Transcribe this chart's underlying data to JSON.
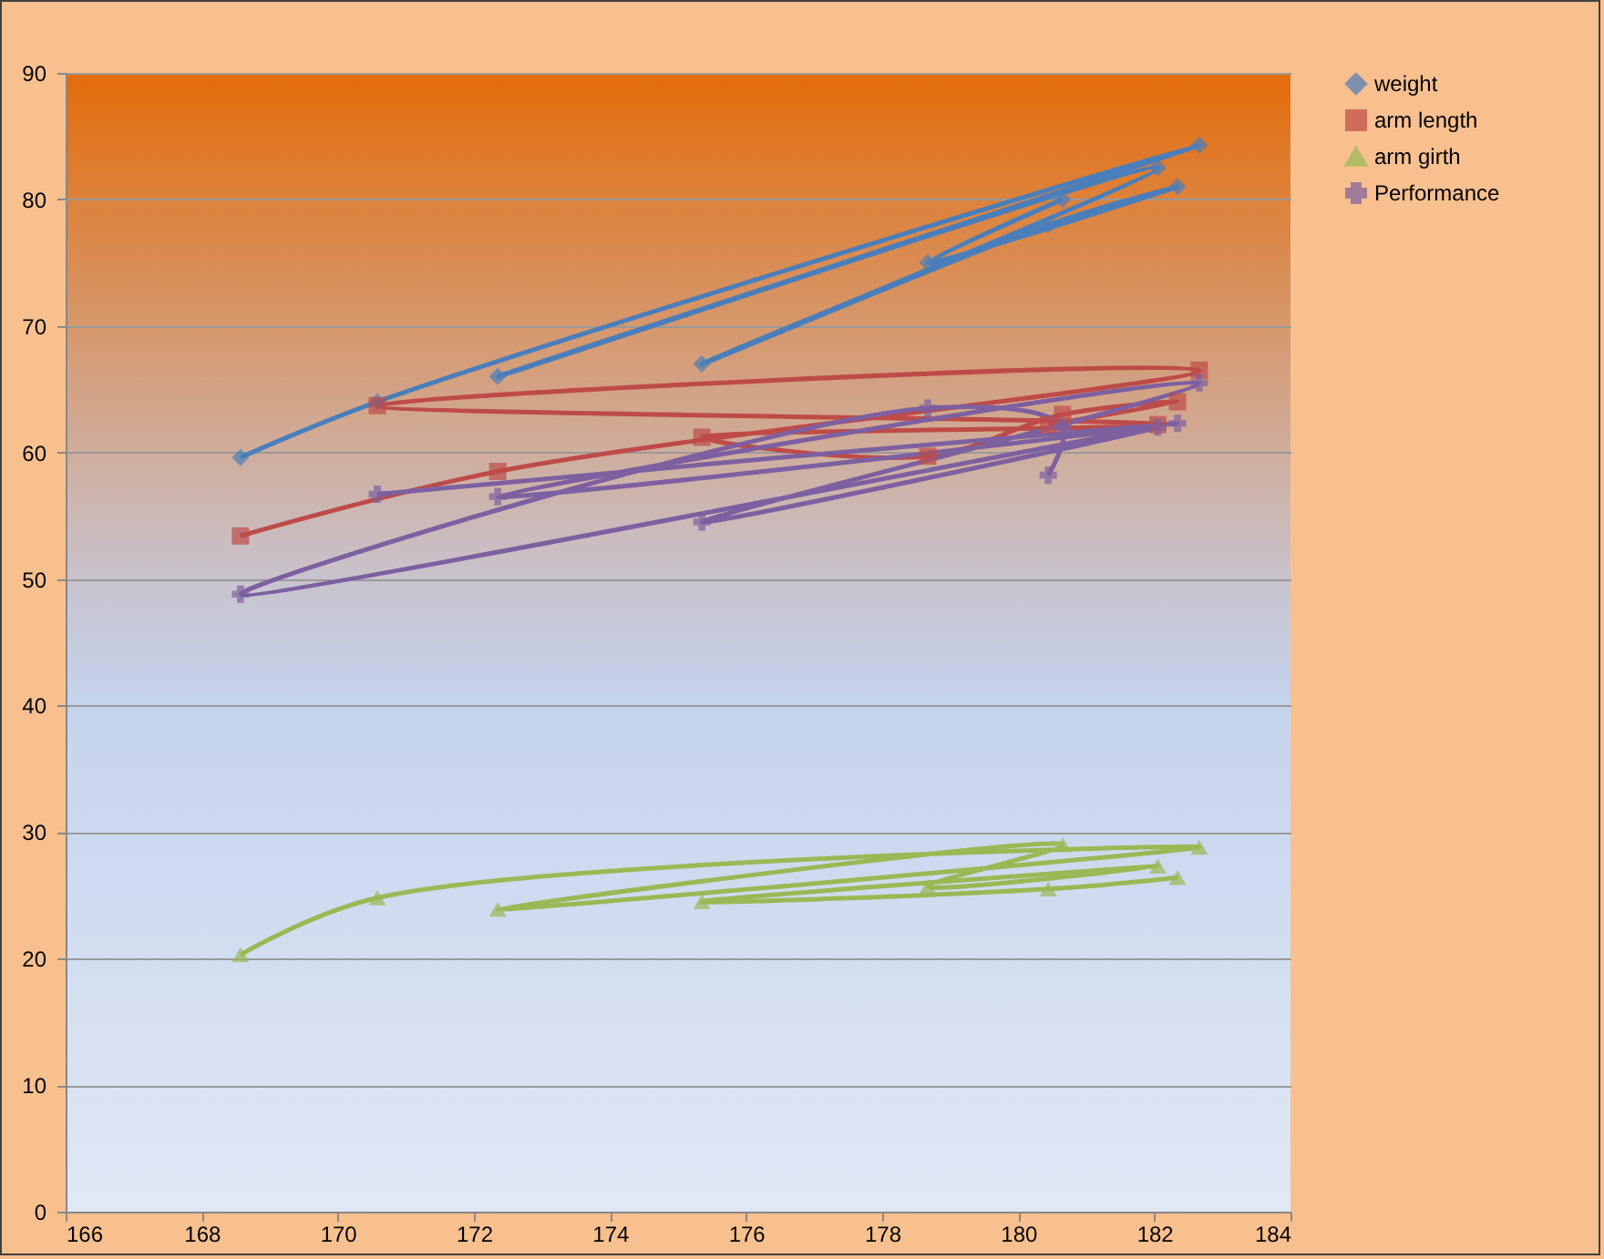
{
  "chart_data": {
    "type": "line",
    "xlim": [
      166,
      184
    ],
    "xticks": [
      166,
      168,
      170,
      172,
      174,
      176,
      178,
      180,
      182,
      184
    ],
    "ylim": [
      0,
      90
    ],
    "yticks": [
      0,
      10,
      20,
      30,
      40,
      50,
      60,
      70,
      80,
      90
    ],
    "grid": "y",
    "legend": "right",
    "line_style": "solid",
    "series": [
      {
        "name": "weight",
        "color": "#4a7ebb",
        "marker": "diamond",
        "x": [
          168.57,
          170.58,
          182.66,
          172.35,
          182.05,
          175.35,
          180.44,
          182.34,
          178.67,
          180.65
        ],
        "values": [
          59.6,
          64,
          84.3,
          66,
          82.5,
          67,
          78,
          81,
          75,
          80
        ]
      },
      {
        "name": "arm length",
        "color": "#be4b48",
        "marker": "square",
        "x": [
          168.57,
          172.35,
          182.66,
          170.58,
          182.05,
          175.35,
          178.67,
          180.65,
          182.34,
          180.44
        ],
        "values": [
          53.4,
          58.5,
          66.5,
          63.7,
          62.2,
          61.2,
          59.7,
          63,
          64,
          62.2
        ]
      },
      {
        "name": "arm girth",
        "color": "#98b954",
        "marker": "triangle",
        "x": [
          168.57,
          170.58,
          182.66,
          172.35,
          180.65,
          178.67,
          182.05,
          175.35,
          180.44,
          182.34
        ],
        "values": [
          20.3,
          24.8,
          28.8,
          23.9,
          29,
          25.7,
          27.3,
          24.5,
          25.5,
          26.4
        ]
      },
      {
        "name": "Performance",
        "color": "#7d60a0",
        "marker": "cross",
        "x": [
          170.58,
          182.34,
          172.35,
          182.66,
          175.35,
          182.05,
          168.57,
          178.67,
          180.65,
          180.44
        ],
        "values": [
          56.7,
          62.3,
          56.5,
          65.5,
          54.5,
          62,
          48.8,
          63.5,
          62,
          58.2
        ]
      }
    ]
  }
}
